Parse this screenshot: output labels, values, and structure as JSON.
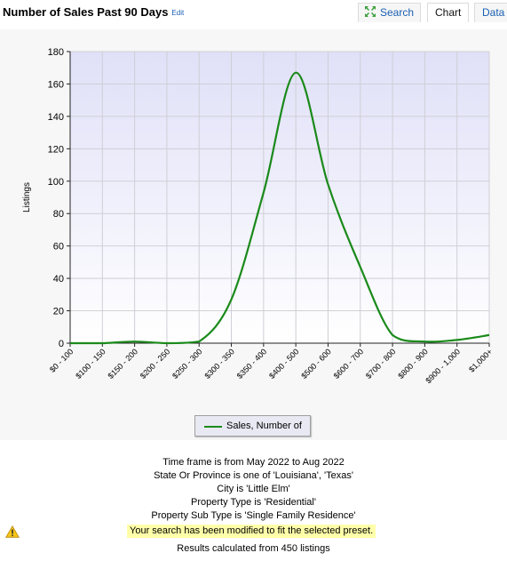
{
  "header": {
    "title": "Number of Sales Past 90 Days",
    "edit_label": "Edit",
    "tabs": {
      "search": "Search",
      "chart": "Chart",
      "data": "Data"
    },
    "icons": {
      "search_tab": "expand-arrows-icon"
    }
  },
  "chart_data": {
    "type": "line",
    "title": "",
    "xlabel": "",
    "ylabel": "Listings",
    "ylim": [
      0,
      180
    ],
    "yticks": [
      0,
      20,
      40,
      60,
      80,
      100,
      120,
      140,
      160,
      180
    ],
    "categories": [
      "$0 - 100",
      "$100 - 150",
      "$150 - 200",
      "$200 - 250",
      "$250 - 300",
      "$300 - 350",
      "$350 - 400",
      "$400 - 500",
      "$500 - 600",
      "$600 - 700",
      "$700 - 800",
      "$800 - 900",
      "$900 - 1,000",
      "$1,000+"
    ],
    "series": [
      {
        "name": "Sales, Number of",
        "color": "#1a8a1a",
        "values": [
          0,
          0,
          1,
          0,
          1,
          27,
          93,
          167,
          98,
          47,
          5,
          1,
          2,
          5
        ]
      }
    ],
    "grid": true,
    "legend_position": "bottom-center"
  },
  "criteria": [
    "Time frame is from May 2022 to Aug 2022",
    "State Or Province is one of 'Louisiana', 'Texas'",
    "City is 'Little Elm'",
    "Property Type is 'Residential'",
    "Property Sub Type is 'Single Family Residence'"
  ],
  "warning": {
    "text": "Your search has been modified to fit the selected preset.",
    "icon": "warning-triangle-icon",
    "highlight": "#ffffaa"
  },
  "results": "Results calculated from 450 listings"
}
